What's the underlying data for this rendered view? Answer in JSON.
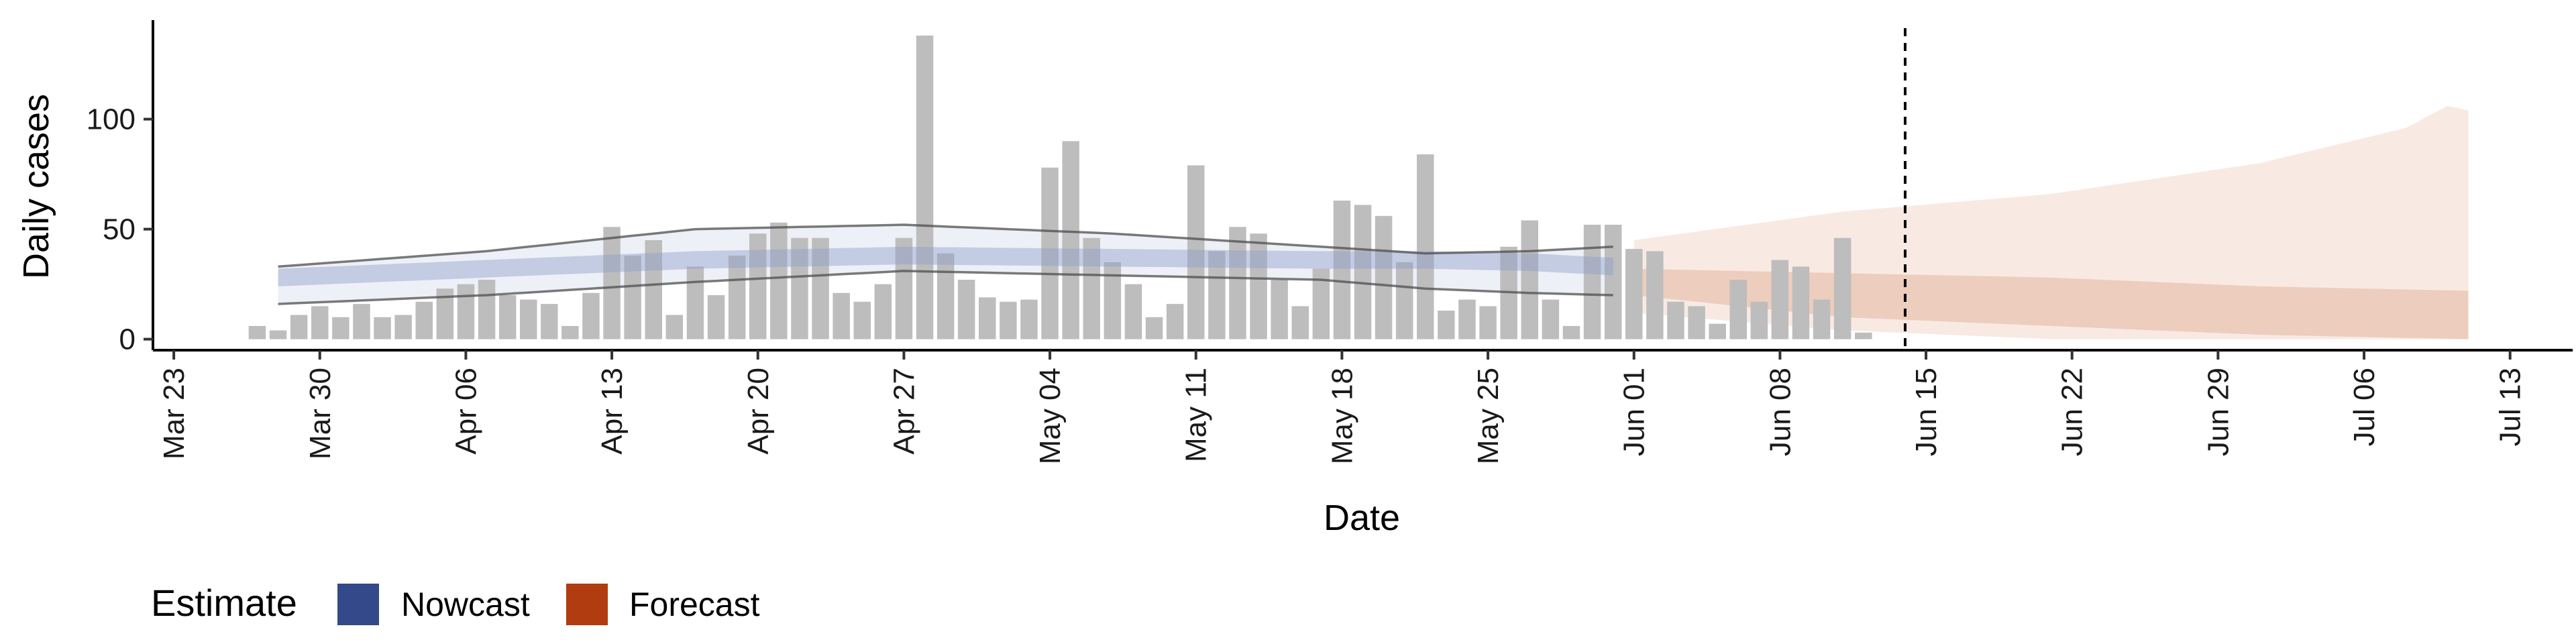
{
  "chart_data": {
    "type": "bar",
    "title": "",
    "xlabel": "Date",
    "ylabel": "Daily cases",
    "ylim": [
      -5,
      145
    ],
    "x_range": [
      "2020-03-22",
      "2020-07-16"
    ],
    "y_ticks": [
      0,
      50,
      100
    ],
    "x_ticks": [
      "2020-03-23",
      "2020-03-30",
      "2020-04-06",
      "2020-04-13",
      "2020-04-20",
      "2020-04-27",
      "2020-05-04",
      "2020-05-11",
      "2020-05-18",
      "2020-05-25",
      "2020-06-01",
      "2020-06-08",
      "2020-06-15",
      "2020-06-22",
      "2020-06-29",
      "2020-07-06",
      "2020-07-13"
    ],
    "x_tick_labels": [
      "Mar 23",
      "Mar 30",
      "Apr 06",
      "Apr 13",
      "Apr 20",
      "Apr 27",
      "May 04",
      "May 11",
      "May 18",
      "May 25",
      "Jun 01",
      "Jun 08",
      "Jun 15",
      "Jun 22",
      "Jun 29",
      "Jul 06",
      "Jul 13"
    ],
    "grid": false,
    "bars": {
      "start_date": "2020-03-27",
      "color": "#bdbdbd",
      "values": [
        6,
        4,
        11,
        15,
        10,
        16,
        10,
        11,
        17,
        23,
        25,
        27,
        20,
        18,
        16,
        6,
        21,
        51,
        38,
        45,
        11,
        33,
        20,
        38,
        48,
        53,
        46,
        46,
        21,
        17,
        25,
        46,
        138,
        39,
        27,
        19,
        17,
        18,
        78,
        90,
        46,
        35,
        25,
        10,
        16,
        79,
        40,
        51,
        48,
        27,
        15,
        32,
        63,
        61,
        56,
        35,
        84,
        13,
        18,
        15,
        42,
        54,
        18,
        6,
        52,
        52,
        41,
        40,
        17,
        15,
        7,
        27,
        17,
        36,
        33,
        18,
        46,
        3
      ]
    },
    "series": [
      {
        "name": "Nowcast",
        "color": "#3a4f8c",
        "start_date": "2020-03-28",
        "end_date": "2020-05-31",
        "knots": [
          [
            0,
            28
          ],
          [
            10,
            32
          ],
          [
            20,
            36
          ],
          [
            30,
            38
          ],
          [
            40,
            37
          ],
          [
            50,
            36
          ],
          [
            55,
            36
          ],
          [
            60,
            35
          ],
          [
            64,
            33
          ]
        ],
        "inner_halfwidth": 4,
        "outer_bounds": {
          "lower": [
            [
              0,
              16
            ],
            [
              10,
              20
            ],
            [
              20,
              26
            ],
            [
              30,
              31
            ],
            [
              40,
              29
            ],
            [
              50,
              27
            ],
            [
              55,
              23
            ],
            [
              60,
              21
            ],
            [
              64,
              20
            ]
          ],
          "upper": [
            [
              0,
              33
            ],
            [
              10,
              40
            ],
            [
              20,
              50
            ],
            [
              30,
              52
            ],
            [
              40,
              48
            ],
            [
              50,
              42
            ],
            [
              55,
              39
            ],
            [
              60,
              40
            ],
            [
              64,
              42
            ]
          ]
        }
      },
      {
        "name": "Forecast",
        "color": "#b5431b",
        "start_date": "2020-06-01",
        "end_date": "2020-07-11",
        "inner_lower": [
          [
            0,
            20
          ],
          [
            10,
            10
          ],
          [
            20,
            6
          ],
          [
            30,
            2
          ],
          [
            40,
            0
          ]
        ],
        "inner_upper": [
          [
            0,
            32
          ],
          [
            10,
            30
          ],
          [
            20,
            28
          ],
          [
            30,
            24
          ],
          [
            40,
            22
          ]
        ],
        "outer_lower": [
          [
            0,
            12
          ],
          [
            10,
            4
          ],
          [
            20,
            0
          ],
          [
            30,
            0
          ],
          [
            40,
            0
          ]
        ],
        "outer_upper": [
          [
            0,
            45
          ],
          [
            10,
            58
          ],
          [
            20,
            66
          ],
          [
            30,
            80
          ],
          [
            37,
            96
          ],
          [
            39,
            106
          ],
          [
            40,
            104
          ]
        ]
      }
    ],
    "reference_line": {
      "date": "2020-06-14",
      "style": "dashed"
    },
    "legend": {
      "title": "Estimate",
      "position": "bottom-left",
      "entries": [
        "Nowcast",
        "Forecast"
      ]
    }
  }
}
